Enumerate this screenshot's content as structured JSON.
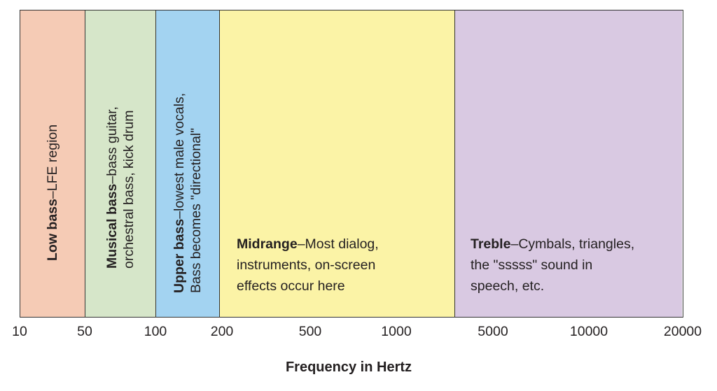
{
  "bands": [
    {
      "name": "Low bass",
      "description": "LFE region",
      "color": "#f5cbb5"
    },
    {
      "name": "Musical bass",
      "description": "bass guitar, orchestral bass, kick drum",
      "description_lines": [
        "bass guitar,",
        "orchestral bass, kick drum"
      ],
      "color": "#d6e6c9"
    },
    {
      "name": "Upper bass",
      "description": "lowest male vocals, Bass becomes \"directional\"",
      "description_lines": [
        "lowest male vocals,",
        "Bass becomes \"directional\""
      ],
      "color": "#a3d3f1"
    },
    {
      "name": "Midrange",
      "description": "Most dialog, instruments, on-screen effects occur here",
      "description_lines": [
        "Most dialog,",
        "instruments, on-screen",
        "effects occur here"
      ],
      "color": "#fbf3a6"
    },
    {
      "name": "Treble",
      "description": "Cymbals, triangles, the \"sssss\" sound in speech, etc.",
      "description_lines": [
        "Cymbals, triangles,",
        "the \"sssss\" sound in",
        "speech, etc."
      ],
      "color": "#d9c9e2"
    }
  ],
  "dash": "–",
  "x_ticks": [
    "10",
    "50",
    "100",
    "200",
    "500",
    "1000",
    "5000",
    "10000",
    "20000"
  ],
  "xlabel": "Frequency in Hertz"
}
